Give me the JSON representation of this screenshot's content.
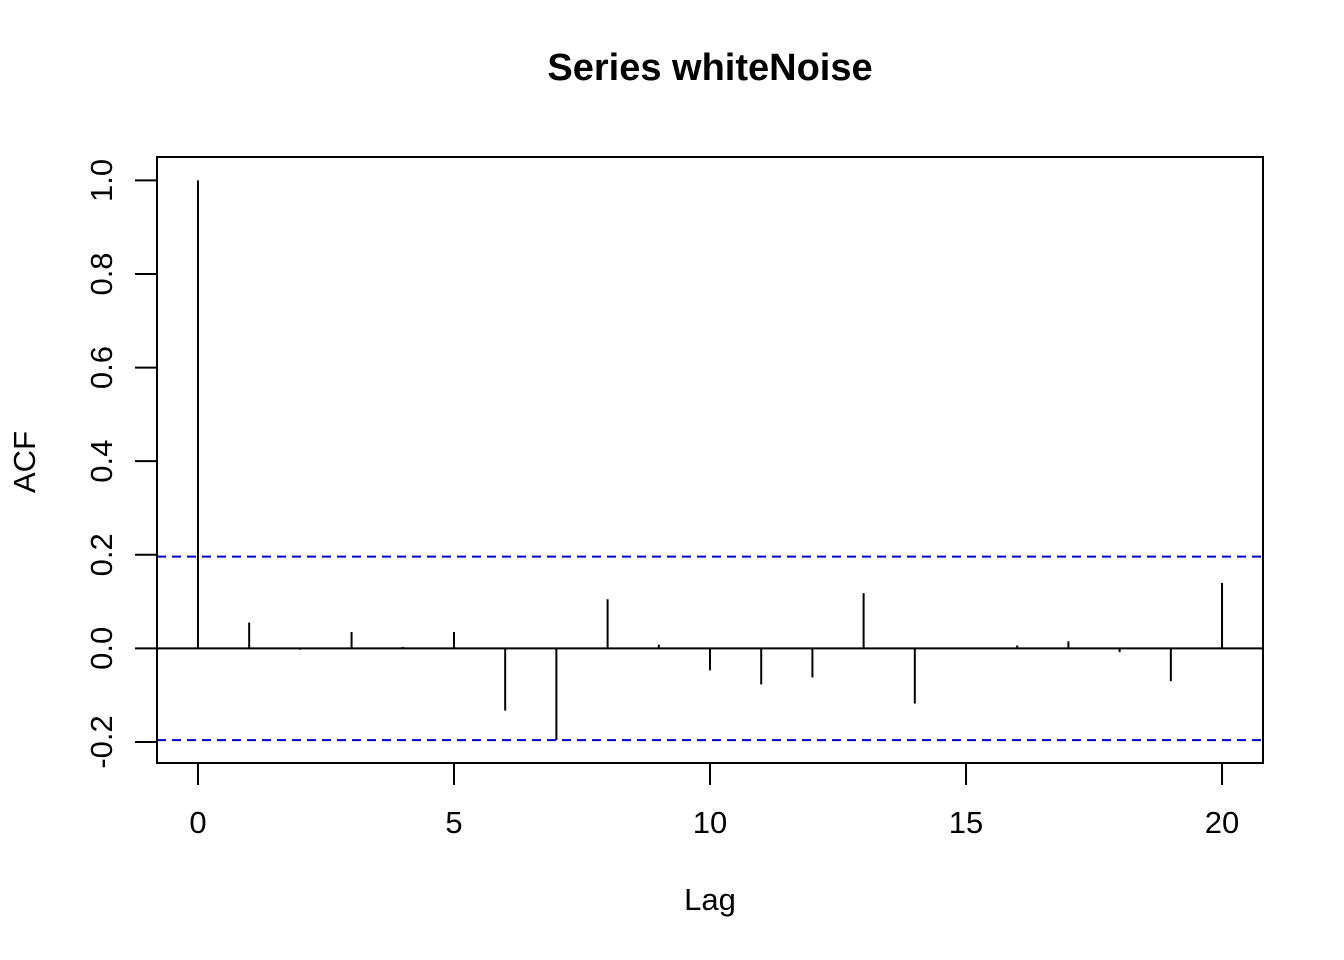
{
  "chart_data": {
    "type": "bar",
    "title": "Series  whiteNoise",
    "xlabel": "Lag",
    "ylabel": "ACF",
    "x": [
      0,
      1,
      2,
      3,
      4,
      5,
      6,
      7,
      8,
      9,
      10,
      11,
      12,
      13,
      14,
      15,
      16,
      17,
      18,
      19,
      20
    ],
    "values": [
      1.0,
      0.055,
      -0.003,
      0.035,
      0.003,
      0.035,
      -0.133,
      -0.196,
      0.105,
      0.008,
      -0.047,
      -0.077,
      -0.062,
      0.118,
      -0.118,
      -0.001,
      0.006,
      0.015,
      -0.008,
      -0.07,
      0.14
    ],
    "confidence_bound": 0.196,
    "xlim": [
      -0.8,
      20.8
    ],
    "ylim": [
      -0.245,
      1.05
    ],
    "x_ticks": [
      0,
      5,
      10,
      15,
      20
    ],
    "x_tick_labels": [
      "0",
      "5",
      "10",
      "15",
      "20"
    ],
    "y_ticks": [
      -0.2,
      0.0,
      0.2,
      0.4,
      0.6,
      0.8,
      1.0
    ],
    "y_tick_labels": [
      "-0.2",
      "0.0",
      "0.2",
      "0.4",
      "0.6",
      "0.8",
      "1.0"
    ],
    "grid": false,
    "colors": {
      "bars": "#000000",
      "zero_line": "#000000",
      "confidence_lines": "#0000cc",
      "frame": "#000000"
    }
  }
}
